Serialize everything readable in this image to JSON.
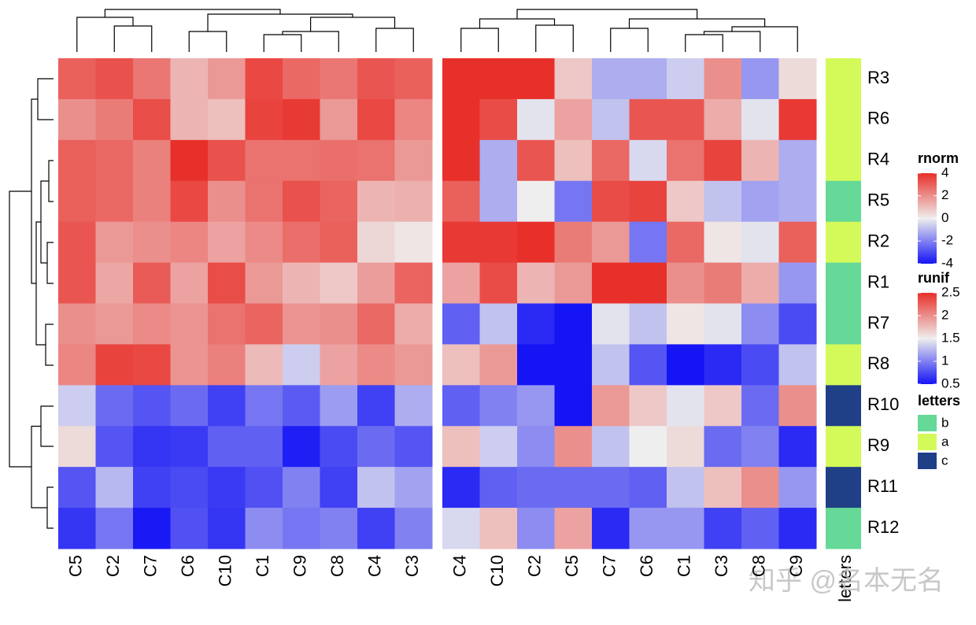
{
  "chart_data": [
    {
      "type": "heatmap",
      "name": "rnorm",
      "rows": [
        "R3",
        "R6",
        "R4",
        "R5",
        "R2",
        "R1",
        "R7",
        "R8",
        "R10",
        "R9",
        "R11",
        "R12"
      ],
      "columns": [
        "C5",
        "C2",
        "C7",
        "C6",
        "C10",
        "C1",
        "C9",
        "C8",
        "C4",
        "C3"
      ],
      "values": [
        [
          3.0,
          3.3,
          2.5,
          1.2,
          1.8,
          3.5,
          2.8,
          2.5,
          3.2,
          3.0
        ],
        [
          2.0,
          2.4,
          3.4,
          1.2,
          1.0,
          3.6,
          3.8,
          1.8,
          3.5,
          2.2
        ],
        [
          3.0,
          2.8,
          2.3,
          4.0,
          3.3,
          2.6,
          2.6,
          2.7,
          2.6,
          1.8
        ],
        [
          3.0,
          2.8,
          2.3,
          3.5,
          2.0,
          2.6,
          3.3,
          2.9,
          1.2,
          1.3
        ],
        [
          3.2,
          1.8,
          2.0,
          2.2,
          1.6,
          2.1,
          2.7,
          3.0,
          0.5,
          0.2
        ],
        [
          3.2,
          1.5,
          3.1,
          1.6,
          3.4,
          1.8,
          1.2,
          0.8,
          1.7,
          2.9
        ],
        [
          2.0,
          1.8,
          2.1,
          1.9,
          2.6,
          2.9,
          1.9,
          2.0,
          2.8,
          1.4
        ],
        [
          2.2,
          3.6,
          3.5,
          1.9,
          2.3,
          1.1,
          -0.6,
          1.6,
          2.1,
          1.8
        ],
        [
          -0.6,
          -2.4,
          -2.8,
          -2.4,
          -3.2,
          -2.2,
          -2.7,
          -1.5,
          -3.2,
          -1.2
        ],
        [
          0.4,
          -2.8,
          -3.4,
          -3.3,
          -2.6,
          -2.6,
          -3.8,
          -3.0,
          -2.4,
          -2.8
        ],
        [
          -2.8,
          -1.0,
          -3.2,
          -3.0,
          -3.3,
          -2.9,
          -2.0,
          -3.2,
          -0.8,
          -1.4
        ],
        [
          -3.4,
          -2.2,
          -3.9,
          -2.9,
          -3.4,
          -1.8,
          -2.2,
          -2.0,
          -3.2,
          -2.0
        ]
      ],
      "color_breaks": [
        -4,
        0,
        4
      ],
      "colors": [
        "#1414f5",
        "#eeeeee",
        "#e8302a"
      ],
      "legend_ticks": [
        4,
        2,
        0,
        -2,
        -4
      ]
    },
    {
      "type": "heatmap",
      "name": "runif",
      "columns": [
        "C4",
        "C10",
        "C2",
        "C5",
        "C7",
        "C6",
        "C1",
        "C3",
        "C8",
        "C9"
      ],
      "values": [
        [
          2.5,
          2.6,
          2.6,
          1.7,
          1.2,
          1.2,
          1.35,
          2.0,
          1.1,
          1.6
        ],
        [
          2.5,
          2.35,
          1.45,
          1.9,
          1.3,
          2.3,
          2.3,
          1.85,
          1.45,
          2.45
        ],
        [
          2.5,
          1.2,
          2.3,
          1.75,
          2.2,
          1.4,
          2.15,
          2.4,
          1.8,
          1.2
        ],
        [
          2.25,
          1.2,
          1.5,
          0.95,
          2.35,
          2.4,
          1.7,
          1.3,
          1.15,
          1.2
        ],
        [
          2.45,
          2.45,
          2.6,
          2.1,
          1.95,
          0.95,
          2.2,
          1.55,
          1.45,
          2.25
        ],
        [
          1.9,
          2.35,
          1.8,
          1.95,
          2.6,
          2.55,
          2.0,
          2.1,
          1.85,
          1.1
        ],
        [
          0.85,
          1.3,
          0.6,
          0.5,
          1.45,
          1.3,
          1.55,
          1.45,
          1.05,
          0.75
        ],
        [
          1.75,
          1.95,
          0.5,
          0.45,
          1.3,
          0.8,
          0.45,
          0.6,
          0.75,
          1.3
        ],
        [
          0.85,
          1.0,
          1.1,
          0.45,
          1.95,
          1.7,
          1.45,
          1.7,
          0.9,
          2.0
        ],
        [
          1.75,
          1.35,
          1.05,
          2.0,
          1.3,
          1.5,
          1.6,
          0.9,
          1.0,
          0.6
        ],
        [
          0.6,
          0.85,
          0.9,
          0.9,
          0.9,
          0.85,
          1.3,
          1.75,
          2.0,
          1.1
        ],
        [
          1.4,
          1.75,
          1.05,
          1.9,
          0.6,
          1.1,
          1.1,
          0.7,
          0.85,
          0.6
        ]
      ],
      "color_breaks": [
        0.5,
        1.5,
        2.5
      ],
      "colors": [
        "#1414f5",
        "#eeeeee",
        "#e8302a"
      ],
      "legend_ticks": [
        2.5,
        2,
        1.5,
        1,
        0.5
      ]
    },
    {
      "type": "annotation",
      "name": "letters",
      "values": [
        "a",
        "a",
        "a",
        "b",
        "a",
        "b",
        "b",
        "a",
        "c",
        "a",
        "c",
        "b"
      ],
      "levels": [
        "b",
        "a",
        "c"
      ],
      "colors": [
        "#66d898",
        "#d4fa5a",
        "#1f3f87"
      ]
    }
  ],
  "watermark": "知乎 @名本无名"
}
